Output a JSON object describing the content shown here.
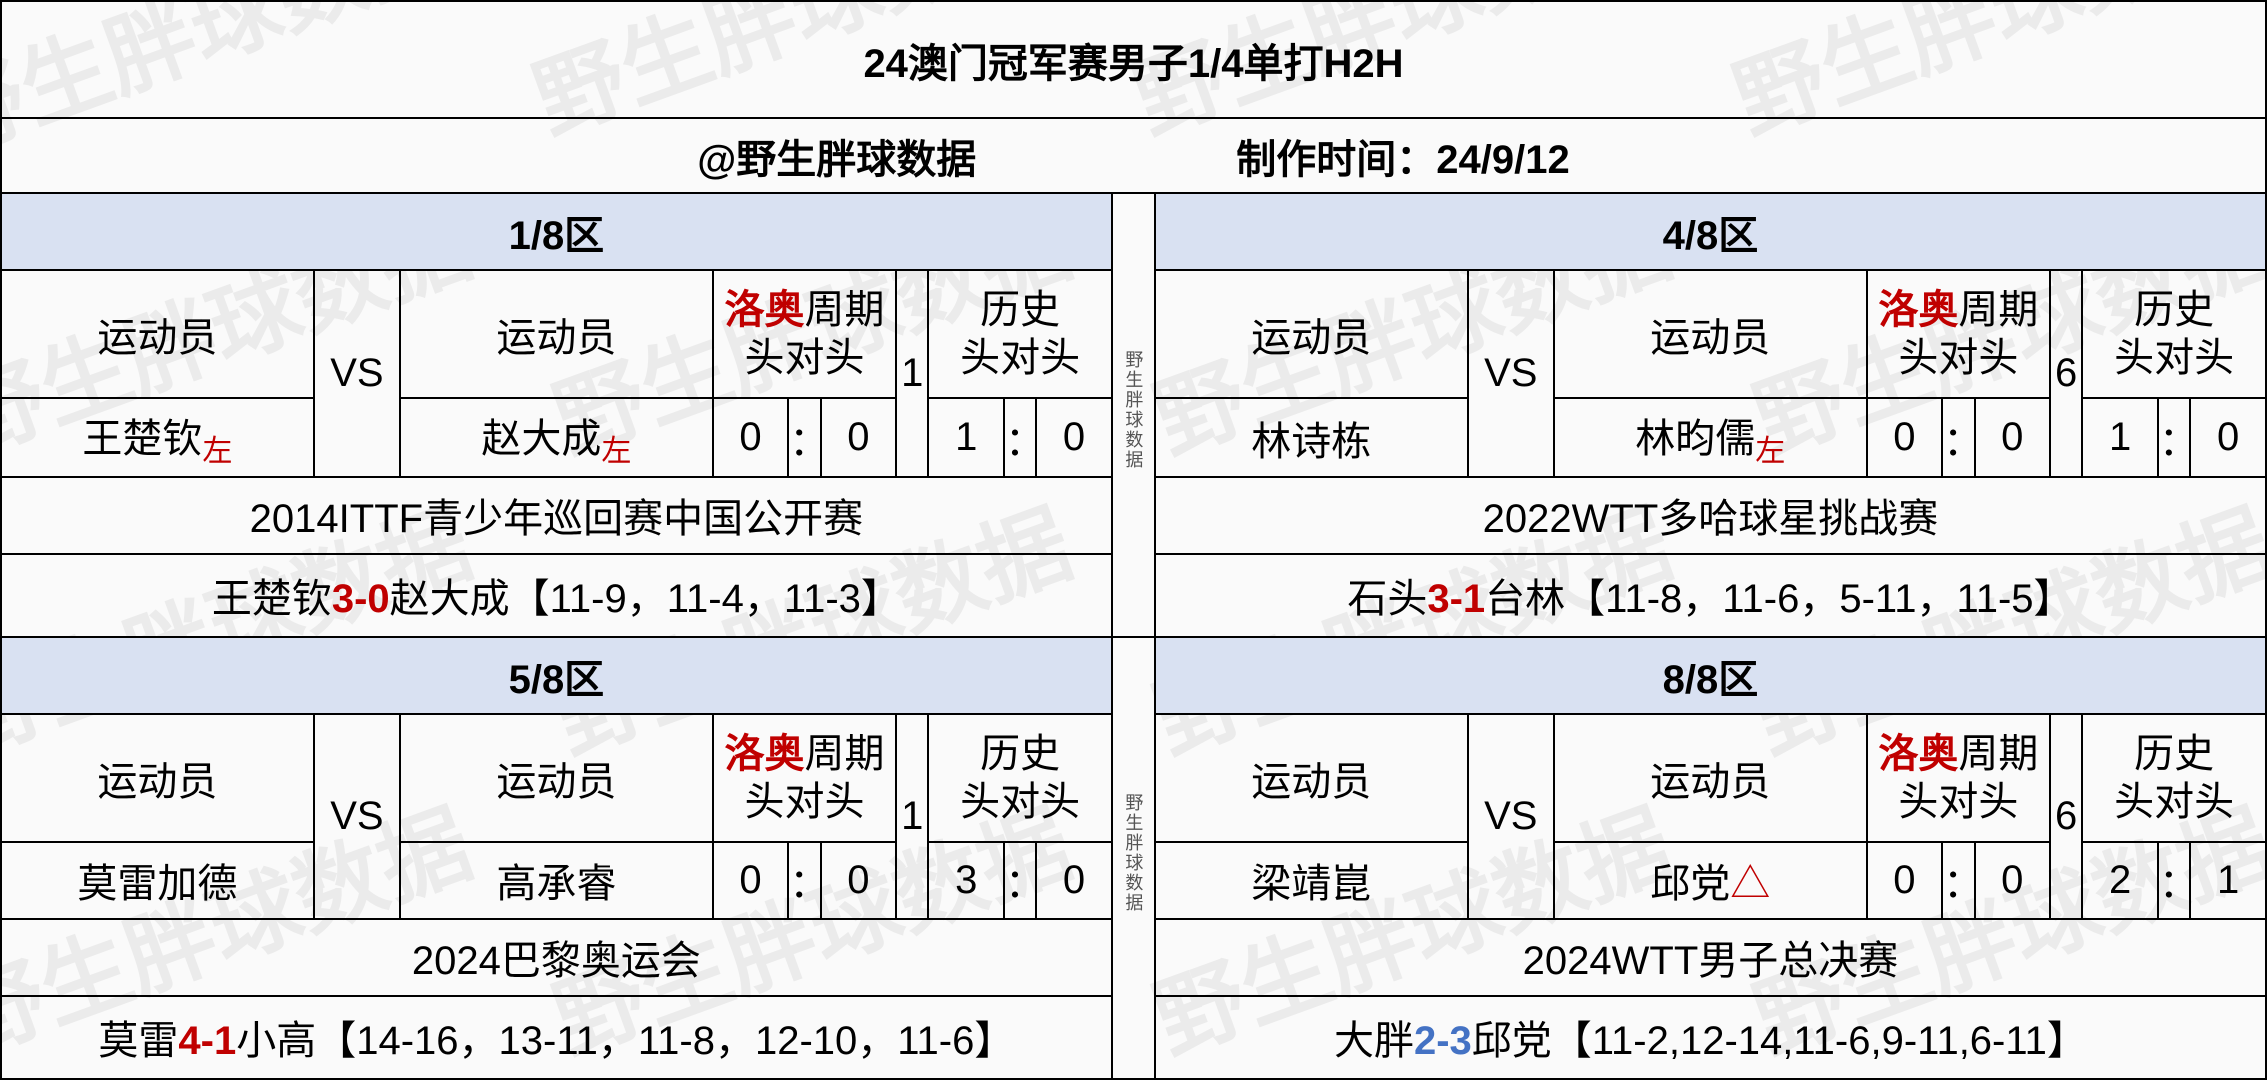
{
  "title": "24澳门冠军赛男子1/4单打H2H",
  "meta": {
    "author": "@野生胖球数据",
    "date_label": "制作时间：24/9/12"
  },
  "watermark": "野生胖球数据",
  "side_label": "野生胖球数据",
  "labels": {
    "athlete": "运动员",
    "vs": "VS",
    "period_prefix": "洛奥",
    "period_suffix": "周期",
    "h2h": "头对头",
    "history": "历史",
    "left": "左",
    "colon": "："
  },
  "sections": [
    {
      "zone": "1/8区",
      "side_num": "1",
      "p1": "王楚钦",
      "p1_left": true,
      "p2": "赵大成",
      "p2_left": true,
      "period": [
        "0",
        "0"
      ],
      "history": [
        "1",
        "0"
      ],
      "event": "2014ITTF青少年巡回赛中国公开赛",
      "result_pre": "王楚钦",
      "score": "3-0",
      "score_color": "red",
      "result_post": "赵大成【11-9，11-4，11-3】"
    },
    {
      "zone": "4/8区",
      "side_num": "6",
      "p1": "林诗栋",
      "p1_left": false,
      "p2": "林昀儒",
      "p2_left": true,
      "period": [
        "0",
        "0"
      ],
      "history": [
        "1",
        "0"
      ],
      "event": "2022WTT多哈球星挑战赛",
      "result_pre": "石头",
      "score": "3-1",
      "score_color": "red",
      "result_post": "台林【11-8，11-6，5-11，11-5】"
    },
    {
      "zone": "5/8区",
      "side_num": "1",
      "p1": "莫雷加德",
      "p1_left": false,
      "p2": "高承睿",
      "p2_left": false,
      "period": [
        "0",
        "0"
      ],
      "history": [
        "3",
        "0"
      ],
      "event": "2024巴黎奥运会",
      "result_pre": "莫雷",
      "score": "4-1",
      "score_color": "red",
      "result_post": "小高【14-16，13-11，11-8，12-10，11-6】"
    },
    {
      "zone": "8/8区",
      "side_num": "6",
      "p1": "梁靖崑",
      "p1_left": false,
      "p2": "邱党",
      "p2_tri": true,
      "p2_left": false,
      "period": [
        "0",
        "0"
      ],
      "history": [
        "2",
        "1"
      ],
      "event": "2024WTT男子总决赛",
      "result_pre": "大胖",
      "score": "2-3",
      "score_color": "blue",
      "result_post": "邱党【11-2,12-14,11-6,9-11,6-11】"
    }
  ]
}
